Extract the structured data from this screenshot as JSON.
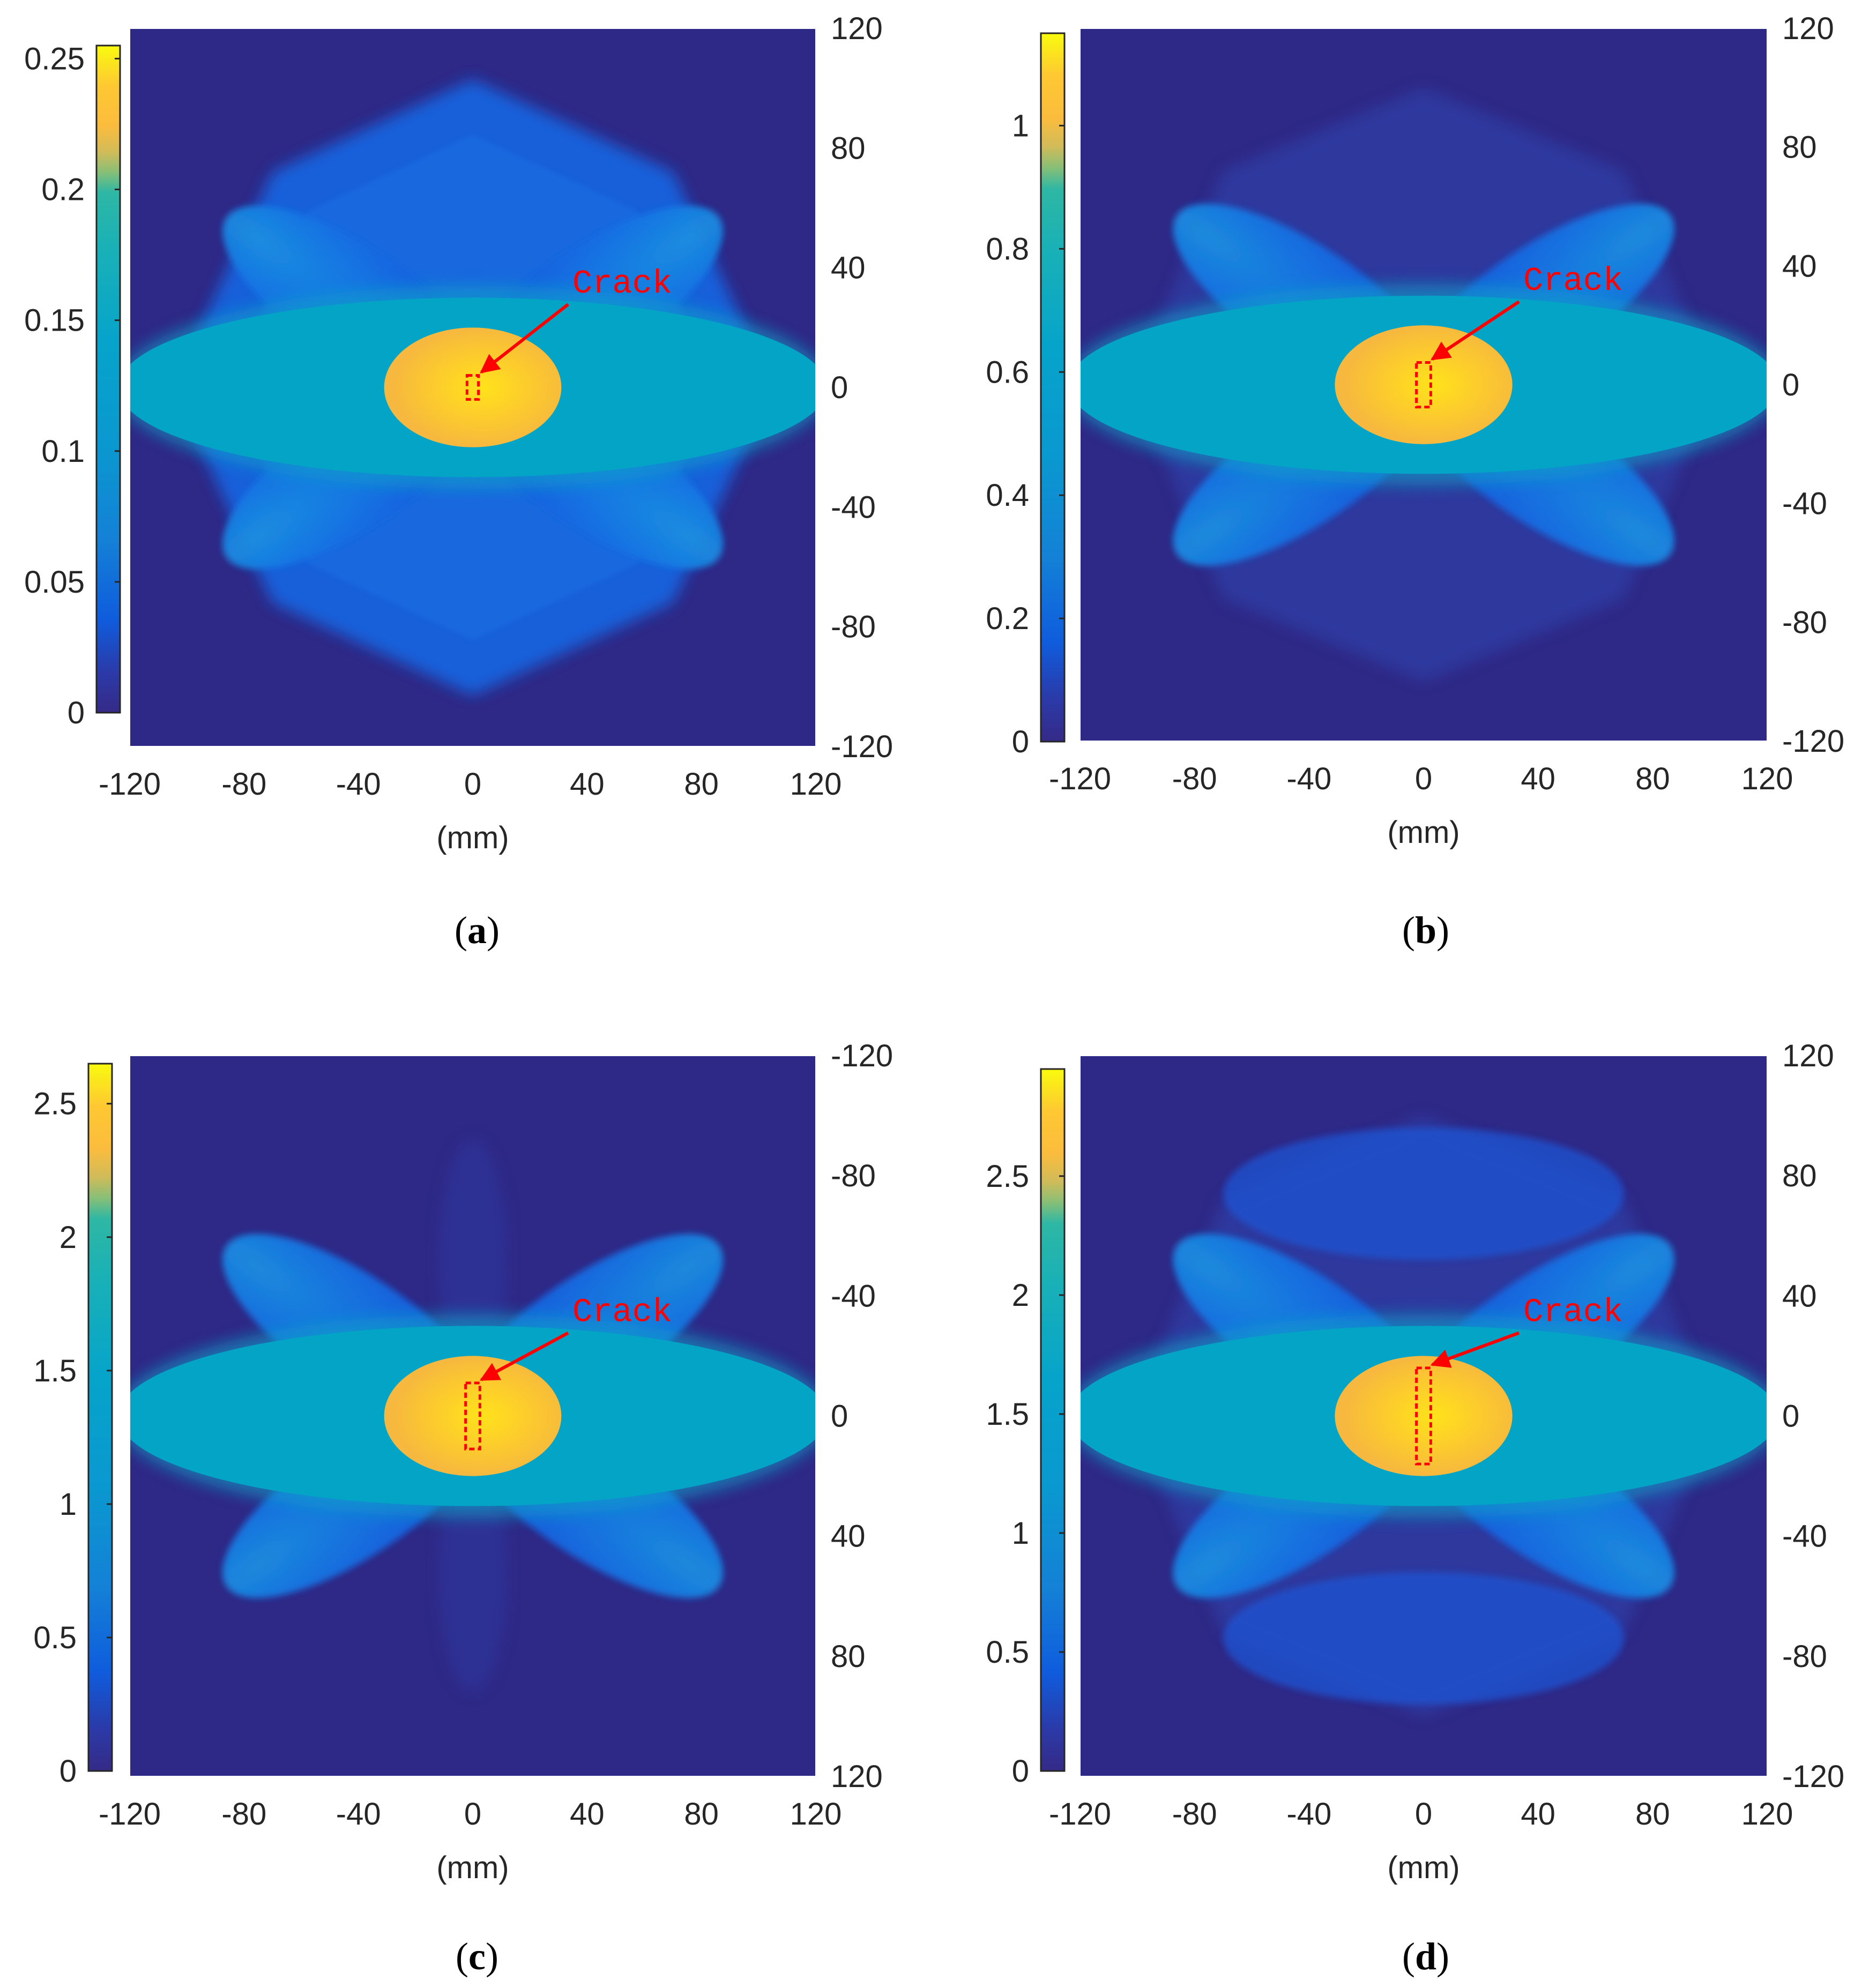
{
  "colors": {
    "background": "#2e2886",
    "map": [
      "#352a87",
      "#0f5cdd",
      "#1481d6",
      "#06a4ca",
      "#2eb7a4",
      "#87bf77",
      "#d1bb59",
      "#fec832",
      "#f9fb0e"
    ],
    "accent": "#ff0000"
  },
  "chart_data": [
    {
      "type": "heatmap",
      "panel_label": "a",
      "xlabel": "(mm)",
      "x_ticks": [
        "-120",
        "-80",
        "-40",
        "0",
        "40",
        "80",
        "120"
      ],
      "y_ticks": [
        "120",
        "80",
        "40",
        "0",
        "-40",
        "-80",
        "-120"
      ],
      "xlim": [
        -120,
        120
      ],
      "ylim": [
        -120,
        120
      ],
      "colorbar": {
        "ticks": [
          "0.25",
          "0.2",
          "0.15",
          "0.1",
          "0.05",
          "0"
        ],
        "range": [
          0,
          0.255
        ]
      },
      "pattern": {
        "lobes": "full",
        "outer_peaks": true,
        "inner_lobes": false,
        "hotspot": [
          0.185,
          0.21
        ]
      },
      "annotation": {
        "text": "Crack",
        "x": 0,
        "y": 0,
        "box": [
          4,
          8
        ]
      }
    },
    {
      "type": "heatmap",
      "panel_label": "b",
      "xlabel": "(mm)",
      "x_ticks": [
        "-120",
        "-80",
        "-40",
        "0",
        "40",
        "80",
        "120"
      ],
      "y_ticks": [
        "120",
        "80",
        "40",
        "0",
        "-40",
        "-80",
        "-120"
      ],
      "xlim": [
        -120,
        120
      ],
      "ylim": [
        -120,
        120
      ],
      "colorbar": {
        "ticks": [
          "1",
          "0.8",
          "0.6",
          "0.4",
          "0.2",
          "0"
        ],
        "range": [
          0,
          1.15
        ]
      },
      "pattern": {
        "lobes": "full",
        "outer_peaks": false,
        "inner_lobes": false,
        "hotspot": [
          0.83,
          0.95
        ]
      },
      "annotation": {
        "text": "Crack",
        "x": 0,
        "y": 0,
        "box": [
          5,
          15
        ]
      }
    },
    {
      "type": "heatmap",
      "panel_label": "c",
      "xlabel": "(mm)",
      "x_ticks": [
        "-120",
        "-80",
        "-40",
        "0",
        "40",
        "80",
        "120"
      ],
      "y_ticks": [
        "-120",
        "-80",
        "-40",
        "0",
        "40",
        "80",
        "120"
      ],
      "xlim": [
        -120,
        120
      ],
      "ylim": [
        -120,
        120
      ],
      "colorbar": {
        "ticks": [
          "2.5",
          "2",
          "1.5",
          "1",
          "0.5",
          "0"
        ],
        "range": [
          0,
          2.65
        ]
      },
      "pattern": {
        "lobes": "butterfly",
        "outer_peaks": false,
        "inner_lobes": false,
        "hotspot": [
          1.95,
          2.2
        ]
      },
      "annotation": {
        "text": "Crack",
        "x": 0,
        "y": 0,
        "box": [
          5,
          22
        ]
      }
    },
    {
      "type": "heatmap",
      "panel_label": "d",
      "xlabel": "(mm)",
      "x_ticks": [
        "-120",
        "-80",
        "-40",
        "0",
        "40",
        "80",
        "120"
      ],
      "y_ticks": [
        "120",
        "80",
        "40",
        "0",
        "-40",
        "-80",
        "-120"
      ],
      "xlim": [
        -120,
        120
      ],
      "ylim": [
        -120,
        120
      ],
      "colorbar": {
        "ticks": [
          "2.5",
          "2",
          "1.5",
          "1",
          "0.5",
          "0"
        ],
        "range": [
          0,
          2.95
        ]
      },
      "pattern": {
        "lobes": "full",
        "outer_peaks": false,
        "inner_lobes": true,
        "hotspot": [
          2.15,
          2.45
        ]
      },
      "annotation": {
        "text": "Crack",
        "x": 0,
        "y": 0,
        "box": [
          5,
          32
        ]
      }
    }
  ]
}
